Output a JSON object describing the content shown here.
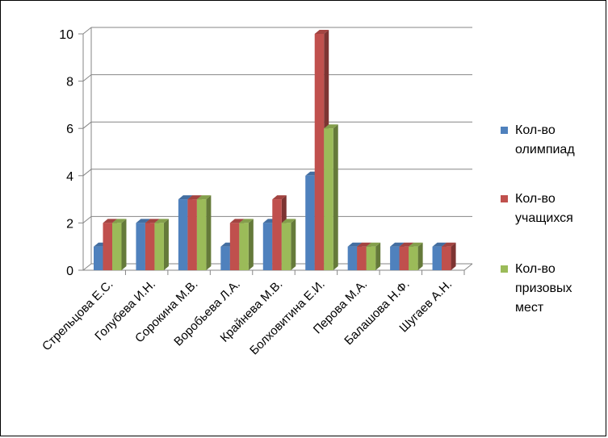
{
  "chart_data": {
    "type": "bar",
    "categories": [
      "Стрельцова Е.С.",
      "Голубева И.Н.",
      "Сорокина М.В.",
      "Воробьева Л.А.",
      "Крайнева М.В.",
      "Болховитина Е.И.",
      "Перова М.А.",
      "Балашова Н.Ф.",
      "Шугаев А.Н."
    ],
    "series": [
      {
        "name": "Кол-во олимпиад",
        "legend_lines": [
          "Кол-во",
          "олимпиад"
        ],
        "color": "#4F81BD",
        "values": [
          1,
          2,
          3,
          1,
          2,
          4,
          1,
          1,
          1
        ]
      },
      {
        "name": "Кол-во учащихся",
        "legend_lines": [
          "Кол-во",
          "учащихся"
        ],
        "color": "#C0504D",
        "values": [
          2,
          2,
          3,
          2,
          3,
          10,
          1,
          1,
          1
        ]
      },
      {
        "name": "Кол-во призовых мест",
        "legend_lines": [
          "Кол-во",
          "призовых",
          "мест"
        ],
        "color": "#9BBB59",
        "values": [
          2,
          2,
          3,
          2,
          2,
          6,
          1,
          1,
          0
        ]
      }
    ],
    "ylim": [
      0,
      10
    ],
    "yticks": [
      "0",
      "2",
      "4",
      "6",
      "8",
      "10"
    ],
    "grid": true,
    "legend_position": "right",
    "title": "",
    "xlabel": "",
    "ylabel": ""
  }
}
